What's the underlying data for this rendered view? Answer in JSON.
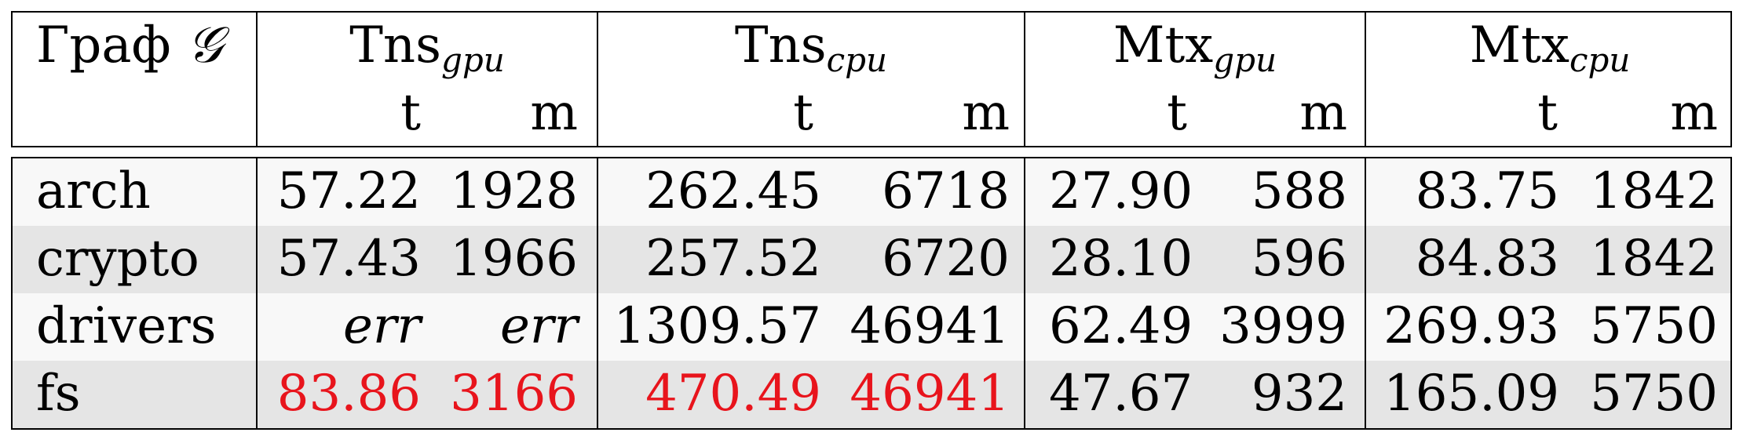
{
  "header": {
    "graph_label": "Граф",
    "graph_symbol": "𝒢",
    "groups": [
      {
        "base": "Tns",
        "sub": "gpu"
      },
      {
        "base": "Tns",
        "sub": "cpu"
      },
      {
        "base": "Mtx",
        "sub": "gpu"
      },
      {
        "base": "Mtx",
        "sub": "cpu"
      }
    ],
    "col_t": "t",
    "col_m": "m"
  },
  "rows": [
    {
      "name": "arch",
      "vals": [
        "57.22",
        "1928",
        "262.45",
        "6718",
        "27.90",
        "588",
        "83.75",
        "1842"
      ]
    },
    {
      "name": "crypto",
      "vals": [
        "57.43",
        "1966",
        "257.52",
        "6720",
        "28.10",
        "596",
        "84.83",
        "1842"
      ]
    },
    {
      "name": "drivers",
      "vals": [
        "err",
        "err",
        "1309.57",
        "46941",
        "62.49",
        "3999",
        "269.93",
        "5750"
      ]
    },
    {
      "name": "fs",
      "vals": [
        "83.86",
        "3166",
        "470.49",
        "46941",
        "47.67",
        "932",
        "165.09",
        "5750"
      ]
    }
  ],
  "colors": {
    "highlight": "#e8141c",
    "band_light": "#f8f8f8",
    "band_dark": "#e5e5e5"
  }
}
